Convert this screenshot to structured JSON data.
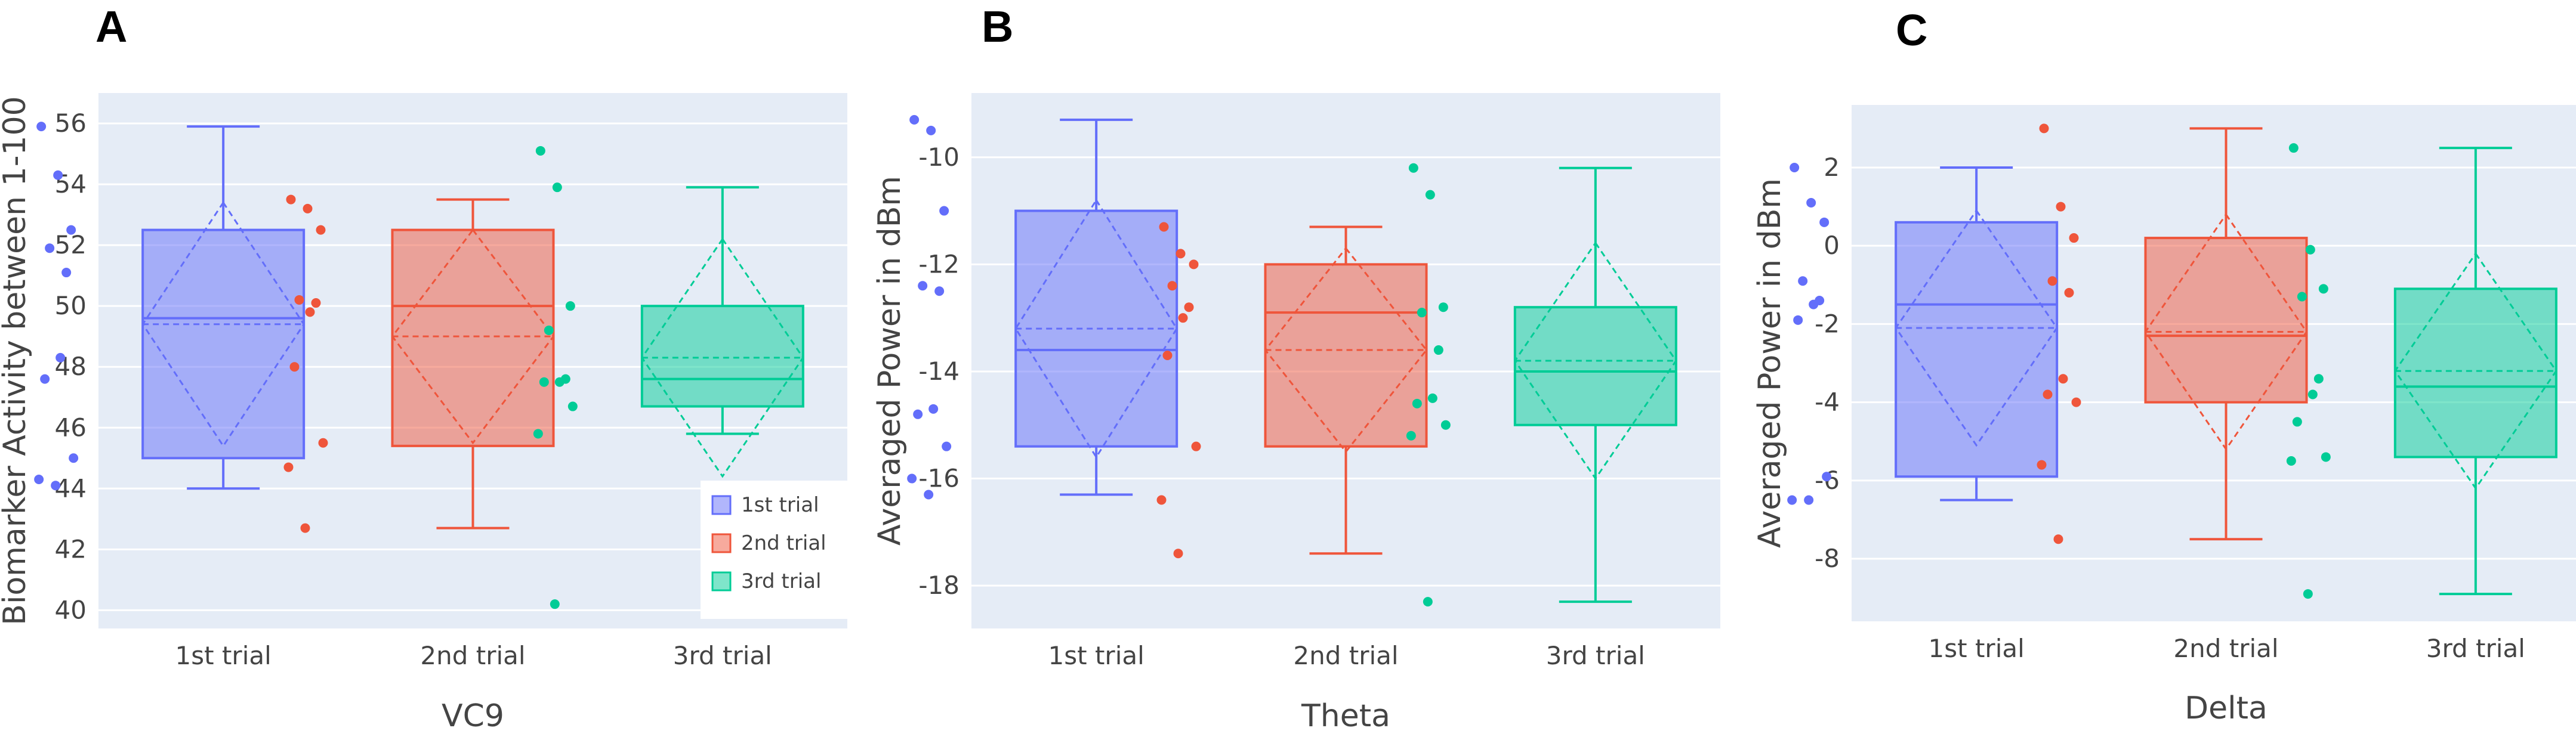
{
  "figure": {
    "colors": {
      "plot_bg": "#e5ecf6",
      "grid": "#ffffff",
      "text": "#444444"
    }
  },
  "chart_data": [
    {
      "panel_label": "A",
      "type": "box",
      "xlabel": "VC9",
      "ylabel": "Biomarker Activity between 1-100",
      "ylim": [
        39.4,
        57.0
      ],
      "yticks": [
        40,
        42,
        44,
        46,
        48,
        50,
        52,
        54,
        56
      ],
      "show_legend": true,
      "legend": {
        "location": "bottom-right",
        "entries": [
          "1st trial",
          "2nd trial",
          "3rd trial"
        ]
      },
      "series": [
        {
          "name": "1st trial",
          "color": "#636efa",
          "min": 44.0,
          "q1": 45.0,
          "median": 49.6,
          "q3": 52.5,
          "max": 55.9,
          "mean": 49.4,
          "sd": 4.0,
          "points": [
            55.9,
            54.3,
            52.5,
            51.9,
            51.1,
            48.3,
            47.6,
            45.0,
            44.3,
            44.1
          ]
        },
        {
          "name": "2nd trial",
          "color": "#ef553b",
          "min": 42.7,
          "q1": 45.4,
          "median": 50.0,
          "q3": 52.5,
          "max": 53.5,
          "mean": 49.0,
          "sd": 3.5,
          "points": [
            53.5,
            53.2,
            52.5,
            50.2,
            50.1,
            49.8,
            48.0,
            45.5,
            44.7,
            42.7
          ]
        },
        {
          "name": "3rd trial",
          "color": "#00cc96",
          "min": 45.8,
          "q1": 46.7,
          "median": 47.6,
          "q3": 50.0,
          "max": 53.9,
          "mean": 48.3,
          "sd": 3.9,
          "points": [
            55.1,
            53.9,
            50.0,
            49.2,
            47.6,
            47.5,
            47.5,
            46.7,
            45.8,
            40.2
          ]
        }
      ],
      "categories": [
        "1st trial",
        "2nd trial",
        "3rd trial"
      ]
    },
    {
      "panel_label": "B",
      "type": "box",
      "xlabel": "Theta",
      "ylabel": "Averaged Power in dBm",
      "ylim": [
        -18.8,
        -8.8
      ],
      "yticks": [
        -18,
        -16,
        -14,
        -12,
        -10
      ],
      "show_legend": false,
      "series": [
        {
          "name": "1st trial",
          "color": "#636efa",
          "min": -16.3,
          "q1": -15.4,
          "median": -13.6,
          "q3": -11.0,
          "max": -9.3,
          "mean": -13.2,
          "sd": 2.4,
          "points": [
            -9.3,
            -9.5,
            -11.0,
            -12.4,
            -12.5,
            -14.7,
            -14.8,
            -15.4,
            -16.0,
            -16.3
          ]
        },
        {
          "name": "2nd trial",
          "color": "#ef553b",
          "min": -17.4,
          "q1": -15.4,
          "median": -12.9,
          "q3": -12.0,
          "max": -11.3,
          "mean": -13.6,
          "sd": 1.9,
          "points": [
            -11.3,
            -11.8,
            -12.0,
            -12.4,
            -12.8,
            -13.0,
            -13.7,
            -15.4,
            -16.4,
            -17.4
          ]
        },
        {
          "name": "3rd trial",
          "color": "#00cc96",
          "min": -18.3,
          "q1": -15.0,
          "median": -14.0,
          "q3": -12.8,
          "max": -10.2,
          "mean": -13.8,
          "sd": 2.2,
          "points": [
            -10.2,
            -10.7,
            -12.8,
            -12.9,
            -13.6,
            -14.5,
            -14.6,
            -15.0,
            -15.2,
            -18.3
          ]
        }
      ],
      "categories": [
        "1st trial",
        "2nd trial",
        "3rd trial"
      ]
    },
    {
      "panel_label": "C",
      "type": "box",
      "xlabel": "Delta",
      "ylabel": "Averaged Power in dBm",
      "ylim": [
        -9.6,
        3.6
      ],
      "yticks": [
        -8,
        -6,
        -4,
        -2,
        0,
        2
      ],
      "show_legend": false,
      "series": [
        {
          "name": "1st trial",
          "color": "#636efa",
          "min": -6.5,
          "q1": -5.9,
          "median": -1.5,
          "q3": 0.6,
          "max": 2.0,
          "mean": -2.1,
          "sd": 3.0,
          "points": [
            2.0,
            1.1,
            0.6,
            -0.9,
            -1.4,
            -1.5,
            -1.9,
            -5.9,
            -6.5,
            -6.5
          ]
        },
        {
          "name": "2nd trial",
          "color": "#ef553b",
          "min": -7.5,
          "q1": -4.0,
          "median": -2.3,
          "q3": 0.2,
          "max": 3.0,
          "mean": -2.2,
          "sd": 3.0,
          "points": [
            3.0,
            1.0,
            0.2,
            -0.9,
            -1.2,
            -3.4,
            -3.8,
            -4.0,
            -5.6,
            -7.5
          ]
        },
        {
          "name": "3rd trial",
          "color": "#00cc96",
          "min": -8.9,
          "q1": -5.4,
          "median": -3.6,
          "q3": -1.1,
          "max": 2.5,
          "mean": -3.2,
          "sd": 3.0,
          "points": [
            2.5,
            -0.1,
            -1.1,
            -1.3,
            -3.4,
            -3.8,
            -4.5,
            -5.4,
            -5.5,
            -8.9
          ]
        }
      ],
      "categories": [
        "1st trial",
        "2nd trial",
        "3rd trial"
      ]
    }
  ]
}
